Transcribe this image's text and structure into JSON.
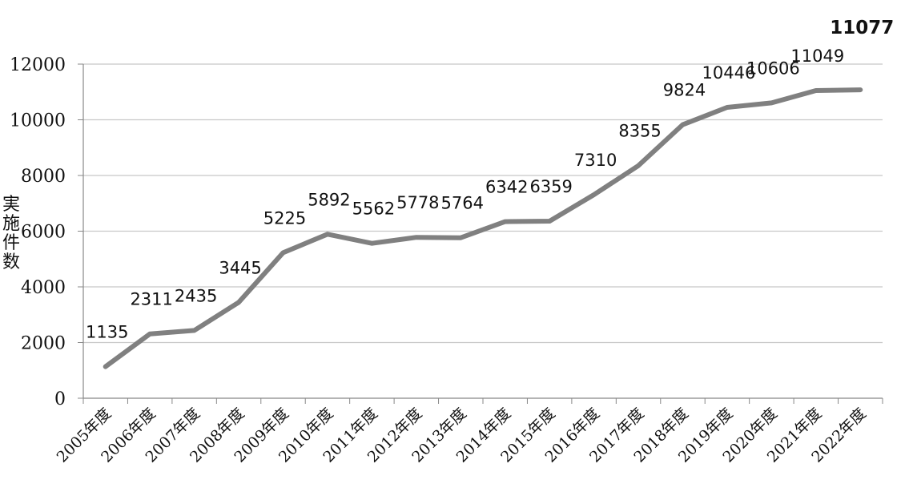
{
  "chart_data": {
    "type": "line",
    "ylabel": "実施件数",
    "xlabel": "",
    "ylim": [
      0,
      12000
    ],
    "y_ticks": [
      0,
      2000,
      4000,
      6000,
      8000,
      10000,
      12000
    ],
    "grid": true,
    "categories": [
      "2005年度",
      "2006年度",
      "2007年度",
      "2008年度",
      "2009年度",
      "2010年度",
      "2011年度",
      "2012年度",
      "2013年度",
      "2014年度",
      "2015年度",
      "2016年度",
      "2017年度",
      "2018年度",
      "2019年度",
      "2020年度",
      "2021年度",
      "2022年度"
    ],
    "series": [
      {
        "values": [
          1135,
          2311,
          2435,
          3445,
          5225,
          5892,
          5562,
          5778,
          5764,
          6342,
          6359,
          7310,
          8355,
          9824,
          10446,
          10606,
          11049,
          11077
        ],
        "color": "#808080"
      }
    ],
    "emphasized_label": "11077"
  }
}
